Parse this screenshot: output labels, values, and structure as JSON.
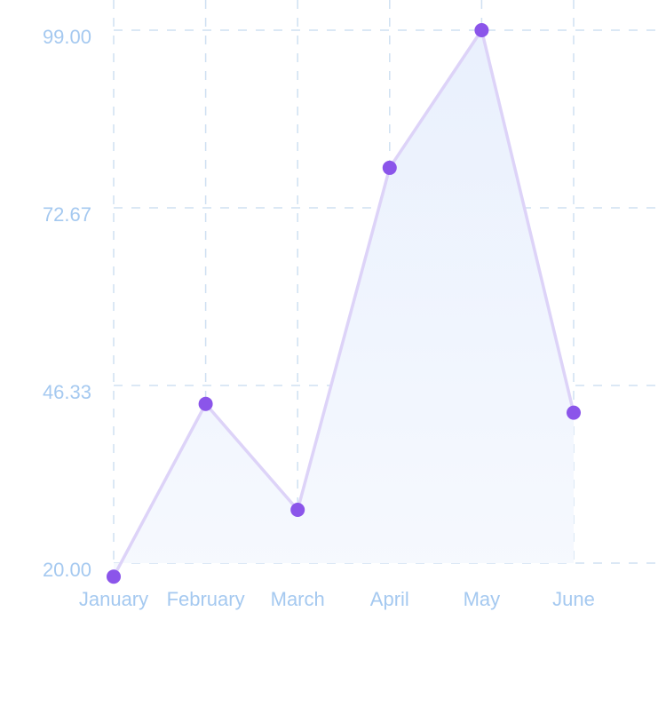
{
  "chart_data": {
    "type": "area",
    "categories": [
      "January",
      "February",
      "March",
      "April",
      "May",
      "June"
    ],
    "series": [
      {
        "values": [
          18,
          43.6,
          27.9,
          78.6,
          99,
          42.3
        ]
      }
    ],
    "y_ticks": [
      "20.00",
      "46.33",
      "72.67",
      "99.00"
    ],
    "y_tick_values": [
      20,
      46.33,
      72.67,
      99
    ],
    "ylim": [
      20,
      99
    ],
    "title": "",
    "xlabel": "",
    "ylabel": "",
    "grid": true,
    "legend": "none",
    "colors": {
      "line": "#ddd3f8",
      "point": "#8b55ea",
      "fill_top": "#e9f0fd",
      "fill_bottom": "#f6f9fe",
      "grid": "#cfe0f2",
      "label": "#a5c9f0"
    }
  }
}
